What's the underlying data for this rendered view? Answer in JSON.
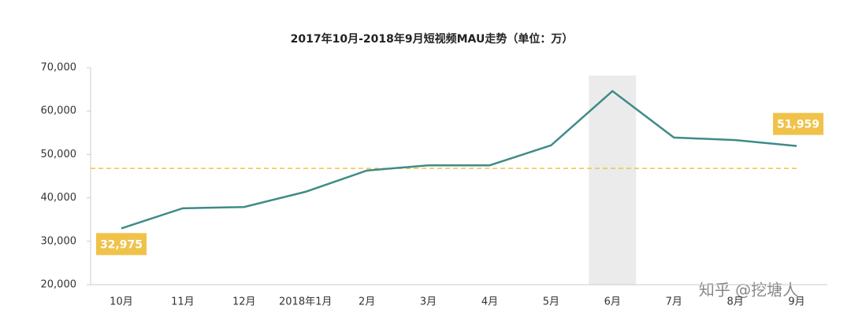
{
  "chart_data": {
    "type": "line",
    "title": "2017年10月-2018年9月短视频MAU走势（单位：万）",
    "categories": [
      "10月",
      "11月",
      "12月",
      "2018年1月",
      "2月",
      "3月",
      "4月",
      "5月",
      "6月",
      "7月",
      "8月",
      "9月"
    ],
    "series": [
      {
        "color": "#3f8b86",
        "values": [
          32975,
          37600,
          37900,
          41400,
          46300,
          47500,
          47500,
          52100,
          64600,
          53900,
          53300,
          51959
        ],
        "value_labels": [
          "32,975",
          null,
          null,
          null,
          null,
          null,
          null,
          null,
          null,
          null,
          null,
          "51,959"
        ]
      }
    ],
    "ylim": [
      20000,
      70000
    ],
    "yticks": [
      {
        "value": 20000,
        "label": "20,000"
      },
      {
        "value": 30000,
        "label": "30,000"
      },
      {
        "value": 40000,
        "label": "40,000"
      },
      {
        "value": 50000,
        "label": "50,000"
      },
      {
        "value": 60000,
        "label": "60,000"
      },
      {
        "value": 70000,
        "label": "70,000"
      }
    ],
    "reference_line": {
      "value": 46800,
      "color": "#f0c24a"
    },
    "highlight_index": 8,
    "label_color": "#f0c24a",
    "watermark": "知乎 @挖塘人"
  }
}
